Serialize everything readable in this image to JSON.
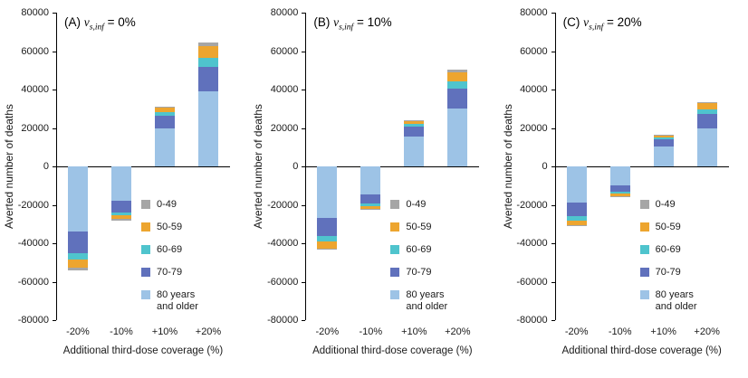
{
  "figure": {
    "background": "#ffffff",
    "y_axis_label": "Averted number of deaths",
    "x_axis_label": "Additional third-dose coverage (%)",
    "y_ticks": [
      80000,
      60000,
      40000,
      20000,
      0,
      -20000,
      -40000,
      -60000,
      -80000
    ],
    "ylim": [
      -80000,
      80000
    ]
  },
  "legend": {
    "items": [
      {
        "label": "0-49",
        "color": "#A6A6A6",
        "label_lines": [
          "0-49"
        ]
      },
      {
        "label": "50-59",
        "color": "#EDA52F",
        "label_lines": [
          "50-59"
        ]
      },
      {
        "label": "60-69",
        "color": "#4FC4CD",
        "label_lines": [
          "60-69"
        ]
      },
      {
        "label": "70-79",
        "color": "#6071BC",
        "label_lines": [
          "70-79"
        ]
      },
      {
        "label": "80 years and older",
        "color": "#9DC3E6",
        "label_lines": [
          "80 years",
          "and older"
        ]
      }
    ]
  },
  "chart_data": [
    {
      "type": "bar",
      "stacked": true,
      "panel": "A",
      "title_text": "(A) v_{s,inf} = 0%",
      "title": {
        "prefix": "(A) ",
        "variable": "v",
        "subscript": "s,inf",
        "suffix": " = 0%"
      },
      "categories": [
        "-20%",
        "-10%",
        "+10%",
        "+20%"
      ],
      "ylim": [
        -80000,
        80000
      ],
      "stack_order_from_baseline": [
        "80 years and older",
        "70-79",
        "60-69",
        "50-59",
        "0-49"
      ],
      "series": [
        {
          "name": "0-49",
          "color": "#A6A6A6",
          "values": [
            -1500,
            -500,
            500,
            2000
          ]
        },
        {
          "name": "50-59",
          "color": "#EDA52F",
          "values": [
            -4000,
            -2000,
            2200,
            6000
          ]
        },
        {
          "name": "60-69",
          "color": "#4FC4CD",
          "values": [
            -3500,
            -1500,
            1800,
            4500
          ]
        },
        {
          "name": "70-79",
          "color": "#6071BC",
          "values": [
            -11000,
            -6000,
            6500,
            13000
          ]
        },
        {
          "name": "80 years and older",
          "color": "#9DC3E6",
          "values": [
            -34000,
            -18000,
            20000,
            39000
          ]
        }
      ]
    },
    {
      "type": "bar",
      "stacked": true,
      "panel": "B",
      "title_text": "(B) v_{s,inf} = 10%",
      "title": {
        "prefix": "(B) ",
        "variable": "v",
        "subscript": "s,inf",
        "suffix": " = 10%"
      },
      "categories": [
        "-20%",
        "-10%",
        "+10%",
        "+20%"
      ],
      "ylim": [
        -80000,
        80000
      ],
      "stack_order_from_baseline": [
        "80 years and older",
        "70-79",
        "60-69",
        "50-59",
        "0-49"
      ],
      "series": [
        {
          "name": "0-49",
          "color": "#A6A6A6",
          "values": [
            -700,
            -300,
            400,
            1200
          ]
        },
        {
          "name": "50-59",
          "color": "#EDA52F",
          "values": [
            -3600,
            -1600,
            1700,
            4800
          ]
        },
        {
          "name": "60-69",
          "color": "#4FC4CD",
          "values": [
            -3000,
            -1300,
            1400,
            3800
          ]
        },
        {
          "name": "70-79",
          "color": "#6071BC",
          "values": [
            -9200,
            -4800,
            5000,
            10500
          ]
        },
        {
          "name": "80 years and older",
          "color": "#9DC3E6",
          "values": [
            -27000,
            -14500,
            15500,
            30000
          ]
        }
      ]
    },
    {
      "type": "bar",
      "stacked": true,
      "panel": "C",
      "title_text": "(C) v_{s,inf} = 20%",
      "title": {
        "prefix": "(C) ",
        "variable": "v",
        "subscript": "s,inf",
        "suffix": " = 20%"
      },
      "categories": [
        "-20%",
        "-10%",
        "+10%",
        "+20%"
      ],
      "ylim": [
        -80000,
        80000
      ],
      "stack_order_from_baseline": [
        "80 years and older",
        "70-79",
        "60-69",
        "50-59",
        "0-49"
      ],
      "series": [
        {
          "name": "0-49",
          "color": "#A6A6A6",
          "values": [
            -500,
            -200,
            300,
            700
          ]
        },
        {
          "name": "50-59",
          "color": "#EDA52F",
          "values": [
            -2500,
            -1100,
            1200,
            3000
          ]
        },
        {
          "name": "60-69",
          "color": "#4FC4CD",
          "values": [
            -2000,
            -900,
            1000,
            2300
          ]
        },
        {
          "name": "70-79",
          "color": "#6071BC",
          "values": [
            -7000,
            -3300,
            3600,
            7500
          ]
        },
        {
          "name": "80 years and older",
          "color": "#9DC3E6",
          "values": [
            -19000,
            -10000,
            10500,
            20000
          ]
        }
      ]
    }
  ]
}
